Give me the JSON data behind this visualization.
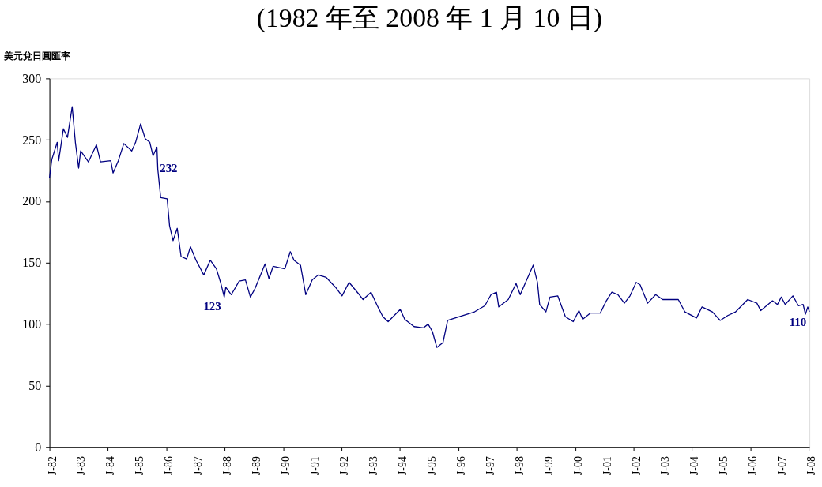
{
  "chart_data": {
    "type": "line",
    "title": "(1982 年至 2008 年 1 月 10 日)",
    "ylabel": "美元兌日圓匯率",
    "xlim": [
      "1982-01-01",
      "2008-01-10"
    ],
    "ylim": [
      0,
      300
    ],
    "yticks": [
      0,
      50,
      100,
      150,
      200,
      250,
      300
    ],
    "xticks": [
      {
        "value": "1982-01-01",
        "label": "J-82"
      },
      {
        "value": "1983-01-01",
        "label": "J-83"
      },
      {
        "value": "1984-01-01",
        "label": "J-84"
      },
      {
        "value": "1985-01-01",
        "label": "J-85"
      },
      {
        "value": "1986-01-01",
        "label": "J-86"
      },
      {
        "value": "1987-01-01",
        "label": "J-87"
      },
      {
        "value": "1988-01-01",
        "label": "J-88"
      },
      {
        "value": "1989-01-01",
        "label": "J-89"
      },
      {
        "value": "1990-01-01",
        "label": "J-90"
      },
      {
        "value": "1991-01-01",
        "label": "J-91"
      },
      {
        "value": "1992-01-01",
        "label": "J-92"
      },
      {
        "value": "1993-01-01",
        "label": "J-93"
      },
      {
        "value": "1994-01-01",
        "label": "J-94"
      },
      {
        "value": "1995-01-01",
        "label": "J-95"
      },
      {
        "value": "1996-01-01",
        "label": "J-96"
      },
      {
        "value": "1997-01-01",
        "label": "J-97"
      },
      {
        "value": "1998-01-01",
        "label": "J-98"
      },
      {
        "value": "1999-01-01",
        "label": "J-99"
      },
      {
        "value": "2000-01-01",
        "label": "J-00"
      },
      {
        "value": "2001-01-01",
        "label": "J-01"
      },
      {
        "value": "2002-01-01",
        "label": "J-02"
      },
      {
        "value": "2003-01-01",
        "label": "J-03"
      },
      {
        "value": "2004-01-01",
        "label": "J-04"
      },
      {
        "value": "2005-01-01",
        "label": "J-05"
      },
      {
        "value": "2006-01-01",
        "label": "J-06"
      },
      {
        "value": "2007-01-01",
        "label": "J-07"
      },
      {
        "value": "2008-01-01",
        "label": "J-08"
      }
    ],
    "grid": false,
    "marker": "none",
    "line_style": "solid",
    "series": [
      {
        "color": "#000080",
        "x": [
          "1982-01-01",
          "1982-01-30",
          "1982-04-08",
          "1982-04-26",
          "1982-06-24",
          "1982-08-14",
          "1982-10-12",
          "1982-11-21",
          "1983-01-01",
          "1983-01-26",
          "1983-05-03",
          "1983-08-11",
          "1983-10-01",
          "1984-02-07",
          "1984-03-06",
          "1984-05-11",
          "1984-07-19",
          "1984-10-26",
          "1984-12-13",
          "1985-02-14",
          "1985-04-12",
          "1985-06-09",
          "1985-07-19",
          "1985-09-06",
          "1985-09-17",
          "1985-10-23",
          "1986-01-12",
          "1986-02-11",
          "1986-03-27",
          "1986-05-18",
          "1986-07-05",
          "1986-09-13",
          "1986-10-30",
          "1987-01-08",
          "1987-04-15",
          "1987-07-05",
          "1987-09-20",
          "1987-11-11",
          "1987-12-27",
          "1988-01-15",
          "1988-03-24",
          "1988-07-01",
          "1988-09-17",
          "1988-11-18",
          "1989-01-15",
          "1989-05-21",
          "1989-07-08",
          "1989-08-29",
          "1990-01-23",
          "1990-04-01",
          "1990-05-18",
          "1990-08-07",
          "1990-10-12",
          "1991-01-01",
          "1991-03-17",
          "1991-06-24",
          "1991-10-19",
          "1992-01-08",
          "1992-04-05",
          "1992-08-11",
          "1992-09-27",
          "1993-01-05",
          "1993-03-24",
          "1993-06-02",
          "1993-08-07",
          "1994-01-05",
          "1994-03-02",
          "1994-06-27",
          "1994-10-23",
          "1994-12-20",
          "1995-02-11",
          "1995-04-08",
          "1995-06-24",
          "1995-08-21",
          "1996-01-08",
          "1996-07-23",
          "1996-11-29",
          "1997-02-14",
          "1997-04-23",
          "1997-05-21",
          "1997-09-17",
          "1997-12-24",
          "1998-02-14",
          "1998-06-09",
          "1998-07-26",
          "1998-09-17",
          "1998-10-15",
          "1999-01-01",
          "1999-02-21",
          "1999-05-29",
          "1999-09-02",
          "1999-12-09",
          "2000-02-18",
          "2000-04-05",
          "2000-07-12",
          "2000-11-11",
          "2001-01-26",
          "2001-04-05",
          "2001-06-20",
          "2001-09-09",
          "2001-11-18",
          "2002-02-03",
          "2002-03-24",
          "2002-06-27",
          "2002-10-05",
          "2003-01-01",
          "2003-07-15",
          "2003-10-05",
          "2004-02-28",
          "2004-05-07",
          "2004-09-13",
          "2004-12-20",
          "2005-03-24",
          "2005-07-01",
          "2005-11-29",
          "2006-03-24",
          "2006-05-11",
          "2006-10-05",
          "2006-12-06",
          "2007-01-23",
          "2007-03-13",
          "2007-06-17",
          "2007-08-25",
          "2007-10-23",
          "2007-11-21",
          "2007-12-20",
          "2008-01-10"
        ],
        "values": [
          219,
          234,
          248,
          233,
          259,
          252,
          277,
          248,
          227,
          241,
          232,
          246,
          232,
          233,
          223,
          233,
          247,
          241,
          248,
          263,
          251,
          248,
          237,
          244,
          226,
          203,
          202,
          180,
          168,
          178,
          155,
          153,
          163,
          152,
          140,
          152,
          145,
          134,
          122,
          130,
          124,
          135,
          136,
          122,
          129,
          149,
          137,
          147,
          145,
          159,
          152,
          148,
          124,
          136,
          140,
          138,
          130,
          123,
          134,
          124,
          120,
          126,
          115,
          106,
          102,
          112,
          104,
          98,
          97,
          100,
          94,
          81,
          85,
          103,
          106,
          110,
          115,
          124,
          126,
          114,
          120,
          133,
          124,
          141,
          148,
          134,
          116,
          110,
          122,
          123,
          106,
          102,
          111,
          104,
          109,
          109,
          119,
          126,
          124,
          117,
          123,
          134,
          132,
          117,
          124,
          120,
          120,
          110,
          105,
          114,
          110,
          103,
          107,
          110,
          120,
          117,
          111,
          119,
          116,
          122,
          116,
          123,
          115,
          116,
          108,
          114,
          110
        ]
      }
    ],
    "annotations": [
      {
        "text": "232",
        "x": "1985-09-13",
        "y": 232
      },
      {
        "text": "123",
        "x": "1987-12-27",
        "y": 123
      },
      {
        "text": "110",
        "x": "2008-01-10",
        "y": 110
      }
    ]
  }
}
